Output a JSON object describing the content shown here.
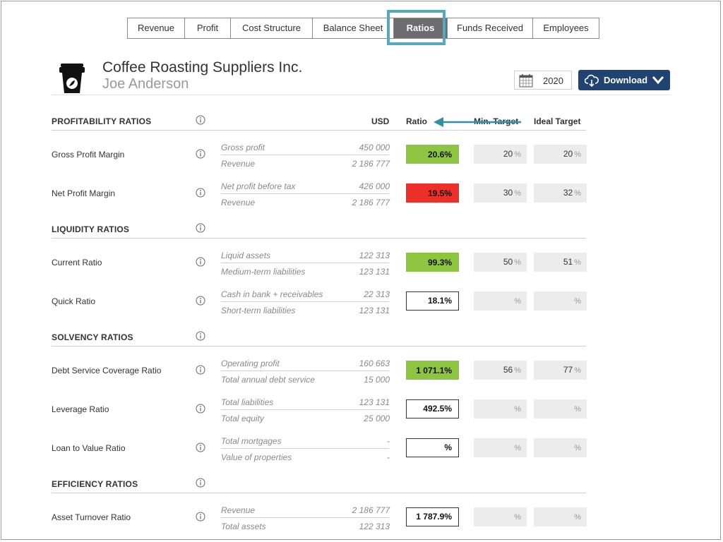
{
  "tabs": [
    {
      "label": "Revenue",
      "active": false
    },
    {
      "label": "Profit",
      "active": false
    },
    {
      "label": "Cost Structure",
      "active": false
    },
    {
      "label": "Balance Sheet",
      "active": false
    },
    {
      "label": "Ratios",
      "active": true
    },
    {
      "label": "Funds Received",
      "active": false
    },
    {
      "label": "Employees",
      "active": false
    }
  ],
  "header": {
    "company": "Coffee Roasting Suppliers Inc.",
    "person": "Joe Anderson",
    "year": "2020",
    "download_label": "Download",
    "icon": "coffee-cup-icon"
  },
  "columns": {
    "usd": "USD",
    "ratio": "Ratio",
    "min_target": "Min. Target",
    "ideal_target": "Ideal Target"
  },
  "percent_sign": "%",
  "colors": {
    "accent": "#1f4472",
    "highlight": "#56a9bd",
    "good": "#8cc540",
    "bad": "#ed2f2a",
    "active_tab": "#6b6b70"
  },
  "sections": [
    {
      "title": "PROFITABILITY RATIOS",
      "rows": [
        {
          "label": "Gross Profit Margin",
          "num_label": "Gross profit",
          "num_value": "450 000",
          "den_label": "Revenue",
          "den_value": "2 186 777",
          "ratio": "20.6%",
          "status": "good",
          "min": "20",
          "ideal": "20"
        },
        {
          "label": "Net Profit Margin",
          "num_label": "Net profit before tax",
          "num_value": "426 000",
          "den_label": "Revenue",
          "den_value": "2 186 777",
          "ratio": "19.5%",
          "status": "bad",
          "min": "30",
          "ideal": "32"
        }
      ]
    },
    {
      "title": "LIQUIDITY RATIOS",
      "rows": [
        {
          "label": "Current Ratio",
          "num_label": "Liquid assets",
          "num_value": "122 313",
          "den_label": "Medium-term liabilities",
          "den_value": "123 131",
          "ratio": "99.3%",
          "status": "good",
          "min": "50",
          "ideal": "51"
        },
        {
          "label": "Quick Ratio",
          "num_label": "Cash in bank + receivables",
          "num_value": "22 313",
          "den_label": "Short-term liabilities",
          "den_value": "123 131",
          "ratio": "18.1%",
          "status": "none",
          "min": "",
          "ideal": ""
        }
      ]
    },
    {
      "title": "SOLVENCY RATIOS",
      "rows": [
        {
          "label": "Debt Service Coverage Ratio",
          "num_label": "Operating profit",
          "num_value": "160 663",
          "den_label": "Total annual debt service",
          "den_value": "15 000",
          "ratio": "1 071.1%",
          "status": "good",
          "min": "56",
          "ideal": "77"
        },
        {
          "label": "Leverage Ratio",
          "num_label": "Total liabilities",
          "num_value": "123 131",
          "den_label": "Total equity",
          "den_value": "25 000",
          "ratio": "492.5%",
          "status": "none",
          "min": "",
          "ideal": ""
        },
        {
          "label": "Loan to Value Ratio",
          "num_label": "Total mortgages",
          "num_value": "-",
          "den_label": "Value of properties",
          "den_value": "-",
          "ratio": "%",
          "status": "none",
          "min": "",
          "ideal": ""
        }
      ]
    },
    {
      "title": "EFFICIENCY RATIOS",
      "rows": [
        {
          "label": "Asset Turnover Ratio",
          "num_label": "Revenue",
          "num_value": "2 186 777",
          "den_label": "Total assets",
          "den_value": "122 313",
          "ratio": "1 787.9%",
          "status": "none",
          "min": "",
          "ideal": ""
        }
      ]
    }
  ]
}
